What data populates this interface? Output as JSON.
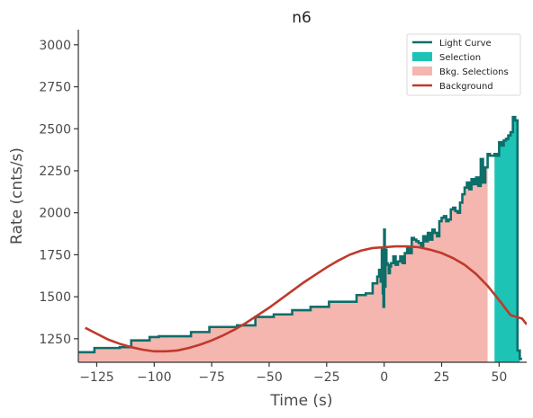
{
  "chart_data": {
    "type": "line",
    "title": "n6",
    "xlabel": "Time (s)",
    "ylabel": "Rate (cnts/s)",
    "xlim": [
      -133,
      62
    ],
    "ylim": [
      1110,
      3090
    ],
    "x_ticks": [
      -125,
      -100,
      -75,
      -50,
      -25,
      0,
      25,
      50
    ],
    "y_ticks": [
      1250,
      1500,
      1750,
      2000,
      2250,
      2500,
      2750,
      3000
    ],
    "grid": false,
    "legend_position": "top-right",
    "colors": {
      "light_curve": "#0d6e6a",
      "selection": "#1dc4b6",
      "bkg_selection": "#f4b6ae",
      "background": "#c0392b",
      "axis": "#333333"
    },
    "legend": [
      {
        "label": "Light Curve",
        "kind": "line",
        "color": "#0d6e6a"
      },
      {
        "label": "Selection",
        "kind": "patch",
        "color": "#1dc4b6"
      },
      {
        "label": "Bkg. Selections",
        "kind": "patch",
        "color": "#f4b6ae"
      },
      {
        "label": "Background",
        "kind": "line",
        "color": "#c0392b"
      }
    ],
    "light_curve": {
      "name": "Light Curve",
      "x": [
        -133,
        -128,
        -126,
        -122,
        -118,
        -115,
        -110,
        -105,
        -102,
        -98,
        -92,
        -88,
        -84,
        -80,
        -76,
        -72,
        -68,
        -64,
        -60,
        -56,
        -52,
        -48,
        -44,
        -40,
        -36,
        -32,
        -28,
        -24,
        -20,
        -16,
        -12,
        -8,
        -5,
        -3,
        -2.2,
        -1.5,
        -1,
        -0.6,
        -0.3,
        0,
        0.3,
        0.6,
        1,
        1.5,
        2,
        2.5,
        3,
        4,
        5,
        6,
        7,
        8,
        9,
        10,
        11,
        12,
        13,
        14,
        15,
        16,
        17,
        18,
        19,
        20,
        21,
        22,
        23,
        24,
        25,
        26,
        27,
        28,
        29,
        30,
        31,
        32,
        33,
        34,
        35,
        36,
        37,
        38,
        39,
        40,
        41,
        42,
        43,
        44,
        45,
        46,
        47,
        48,
        49,
        50,
        51,
        52,
        53,
        54,
        55,
        56,
        57,
        58,
        59,
        60
      ],
      "y": [
        1170,
        1170,
        1195,
        1195,
        1195,
        1200,
        1240,
        1240,
        1260,
        1265,
        1265,
        1265,
        1290,
        1290,
        1320,
        1320,
        1320,
        1330,
        1330,
        1380,
        1380,
        1395,
        1395,
        1420,
        1420,
        1440,
        1440,
        1470,
        1470,
        1470,
        1510,
        1520,
        1580,
        1620,
        1660,
        1590,
        1780,
        1520,
        1440,
        1900,
        1560,
        1780,
        1700,
        1690,
        1640,
        1680,
        1700,
        1740,
        1690,
        1710,
        1740,
        1700,
        1760,
        1790,
        1760,
        1850,
        1840,
        1830,
        1820,
        1800,
        1860,
        1830,
        1880,
        1840,
        1900,
        1880,
        1860,
        1950,
        1970,
        1980,
        1950,
        1960,
        2020,
        2030,
        2010,
        2000,
        2060,
        2110,
        2150,
        2180,
        2140,
        2200,
        2170,
        2210,
        2160,
        2320,
        2180,
        2270,
        2350,
        2340,
        2340,
        2350,
        2340,
        2420,
        2400,
        2430,
        2440,
        2460,
        2480,
        2570,
        2550,
        1180,
        1130,
        1130
      ]
    },
    "selection": {
      "name": "Selection",
      "x_range": [
        48,
        59
      ]
    },
    "bkg_selections": [
      {
        "name": "Bkg. Selections",
        "x_range": [
          -133,
          45
        ]
      }
    ],
    "background": {
      "name": "Background",
      "x": [
        -130,
        -125,
        -120,
        -115,
        -110,
        -105,
        -100,
        -95,
        -90,
        -85,
        -80,
        -75,
        -70,
        -65,
        -60,
        -55,
        -50,
        -45,
        -40,
        -35,
        -30,
        -25,
        -20,
        -15,
        -10,
        -5,
        0,
        5,
        10,
        15,
        20,
        25,
        30,
        35,
        40,
        45,
        50,
        55,
        60,
        62
      ],
      "y": [
        1315,
        1280,
        1245,
        1220,
        1200,
        1185,
        1175,
        1175,
        1180,
        1195,
        1215,
        1240,
        1270,
        1305,
        1345,
        1390,
        1435,
        1485,
        1535,
        1585,
        1630,
        1675,
        1715,
        1750,
        1775,
        1790,
        1795,
        1800,
        1800,
        1795,
        1780,
        1760,
        1730,
        1690,
        1635,
        1565,
        1480,
        1390,
        1370,
        1335
      ]
    }
  }
}
